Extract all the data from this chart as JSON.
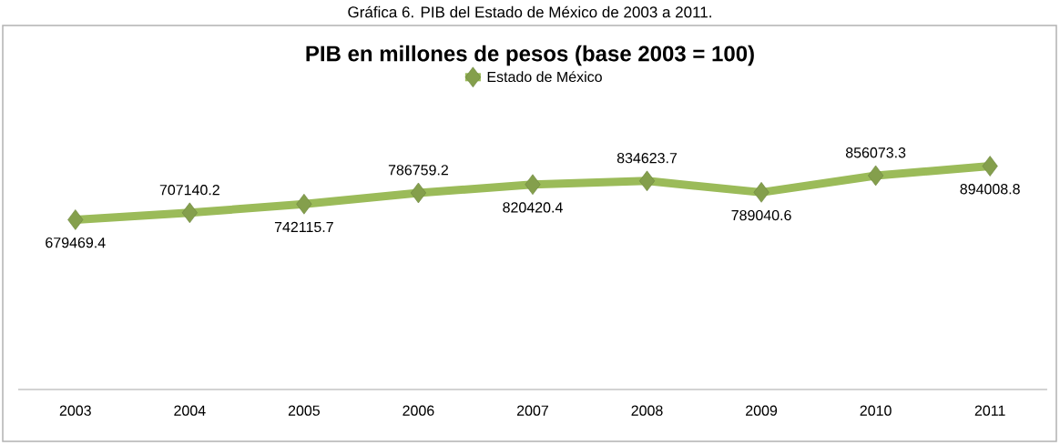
{
  "chart_data": {
    "type": "line",
    "title": "PIB en millones de pesos (base 2003 = 100)",
    "annotations": [
      "Gráfica 6. PIB del Estado de México de 2003 a 2011."
    ],
    "categories": [
      "2003",
      "2004",
      "2005",
      "2006",
      "2007",
      "2008",
      "2009",
      "2010",
      "2011"
    ],
    "series": [
      {
        "name": "Estado de México",
        "color": "#9bbb59",
        "values": [
          679469.4,
          707140.2,
          742115.7,
          786759.2,
          820420.4,
          834623.7,
          789040.6,
          856073.3,
          894008.8
        ]
      }
    ],
    "data_labels": true,
    "legend": "top",
    "grid": false,
    "marker": "diamond",
    "line_style": "solid"
  }
}
